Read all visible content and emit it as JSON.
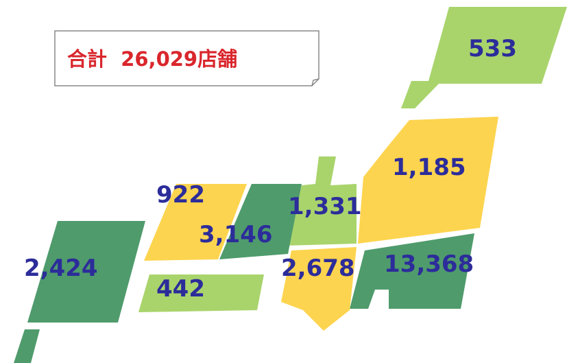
{
  "title": "合計  26,029店舗",
  "regions": [
    {
      "label": "533"
    },
    {
      "label": "1,185"
    },
    {
      "label": "922"
    },
    {
      "label": "1,331"
    },
    {
      "label": "3,146"
    },
    {
      "label": "2,424"
    },
    {
      "label": "2,678"
    },
    {
      "label": "13,368"
    },
    {
      "label": "442"
    }
  ]
}
